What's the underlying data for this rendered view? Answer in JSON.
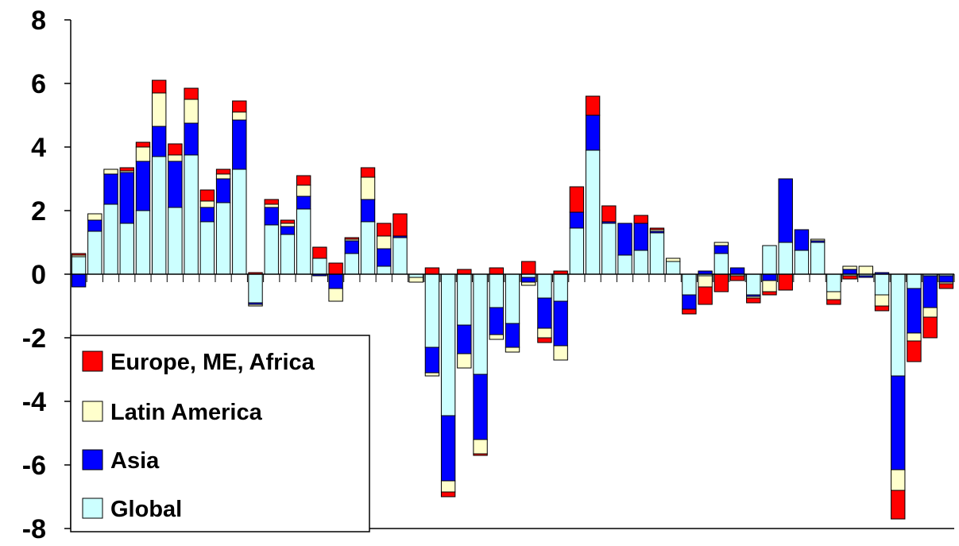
{
  "chart_data": {
    "type": "bar",
    "stacked": true,
    "title": "",
    "xlabel": "",
    "ylabel": "",
    "ylim": [
      -8,
      8
    ],
    "yticks": [
      -8,
      -6,
      -4,
      -2,
      0,
      2,
      4,
      6,
      8
    ],
    "ytick_labels": [
      "-8",
      "-6",
      "-4",
      "-2",
      "0",
      "2",
      "4",
      "6",
      "8"
    ],
    "grid": false,
    "legend_position": "bottom-left",
    "legend": [
      {
        "name": "Europe, ME, Africa",
        "color": "#ff0000"
      },
      {
        "name": "Latin America",
        "color": "#ffffcc"
      },
      {
        "name": "Asia",
        "color": "#0000ff"
      },
      {
        "name": "Global",
        "color": "#ccffff"
      }
    ],
    "x": [
      1,
      2,
      3,
      4,
      5,
      6,
      7,
      8,
      9,
      10,
      11,
      12,
      13,
      14,
      15,
      16,
      17,
      18,
      19,
      20,
      21,
      22,
      23,
      24,
      25,
      26,
      27,
      28,
      29,
      30,
      31,
      32,
      33,
      34,
      35,
      36,
      37,
      38,
      39,
      40,
      41,
      42,
      43,
      44,
      45,
      46,
      47,
      48,
      49,
      50,
      51,
      52,
      53,
      54,
      55
    ],
    "series": [
      {
        "name": "Global",
        "color": "#ccffff",
        "values": [
          0.55,
          1.35,
          2.2,
          1.6,
          2.0,
          3.7,
          2.1,
          3.75,
          1.65,
          2.25,
          3.3,
          -0.9,
          1.55,
          1.25,
          2.05,
          0.5,
          0.0,
          0.65,
          1.65,
          0.25,
          1.15,
          -0.1,
          -2.3,
          -4.45,
          -1.6,
          -3.15,
          -1.05,
          -1.55,
          -0.1,
          -0.75,
          -0.85,
          1.45,
          3.9,
          1.6,
          0.6,
          0.75,
          1.3,
          0.4,
          -0.65,
          -0.05,
          0.65,
          -0.05,
          -0.65,
          0.9,
          1.0,
          0.75,
          1.0,
          -0.55,
          -0.05,
          -0.05,
          -0.65,
          -3.2,
          -0.45,
          -0.05,
          -0.05
        ]
      },
      {
        "name": "Asia",
        "color": "#0000ff",
        "values": [
          -0.4,
          0.35,
          0.95,
          1.6,
          1.55,
          0.95,
          1.45,
          1.0,
          0.45,
          0.75,
          1.55,
          -0.05,
          0.55,
          0.25,
          0.4,
          -0.05,
          -0.45,
          0.4,
          0.7,
          0.55,
          0.05,
          0.0,
          -0.8,
          -2.05,
          -0.9,
          -2.05,
          -0.85,
          -0.75,
          -0.15,
          -0.95,
          -1.4,
          0.5,
          1.1,
          0.05,
          1.0,
          0.85,
          0.05,
          0.0,
          -0.45,
          0.1,
          0.25,
          0.2,
          -0.05,
          -0.2,
          2.0,
          0.65,
          0.05,
          0.0,
          0.15,
          -0.05,
          0.05,
          -2.95,
          -1.4,
          -1.0,
          -0.2
        ]
      },
      {
        "name": "Latin America",
        "color": "#ffffcc",
        "values": [
          0.05,
          0.2,
          0.15,
          0.05,
          0.45,
          1.05,
          0.2,
          0.75,
          0.2,
          0.15,
          0.25,
          -0.05,
          0.1,
          0.1,
          0.35,
          0.0,
          -0.4,
          0.05,
          0.7,
          0.4,
          0.0,
          -0.15,
          -0.1,
          -0.35,
          -0.45,
          -0.45,
          -0.15,
          -0.15,
          -0.1,
          -0.3,
          -0.45,
          0.0,
          0.0,
          0.0,
          0.0,
          0.0,
          0.05,
          0.1,
          0.0,
          -0.35,
          0.1,
          0.0,
          -0.05,
          -0.35,
          0.0,
          0.0,
          0.05,
          -0.25,
          0.1,
          0.25,
          -0.35,
          -0.65,
          -0.25,
          -0.3,
          -0.05
        ]
      },
      {
        "name": "Europe, ME, Africa",
        "color": "#ff0000",
        "values": [
          0.05,
          0.0,
          0.0,
          0.1,
          0.15,
          0.4,
          0.35,
          0.35,
          0.35,
          0.15,
          0.35,
          0.05,
          0.15,
          0.1,
          0.3,
          0.35,
          0.35,
          0.05,
          0.3,
          0.4,
          0.7,
          0.0,
          0.2,
          -0.15,
          0.15,
          -0.05,
          0.2,
          0.0,
          0.4,
          -0.15,
          0.1,
          0.8,
          0.6,
          0.5,
          0.0,
          0.25,
          0.05,
          0.0,
          -0.15,
          -0.55,
          -0.55,
          -0.15,
          -0.15,
          -0.1,
          -0.5,
          0.0,
          0.0,
          -0.15,
          -0.1,
          0.0,
          -0.15,
          -0.9,
          -0.65,
          -0.65,
          -0.15
        ]
      }
    ]
  }
}
